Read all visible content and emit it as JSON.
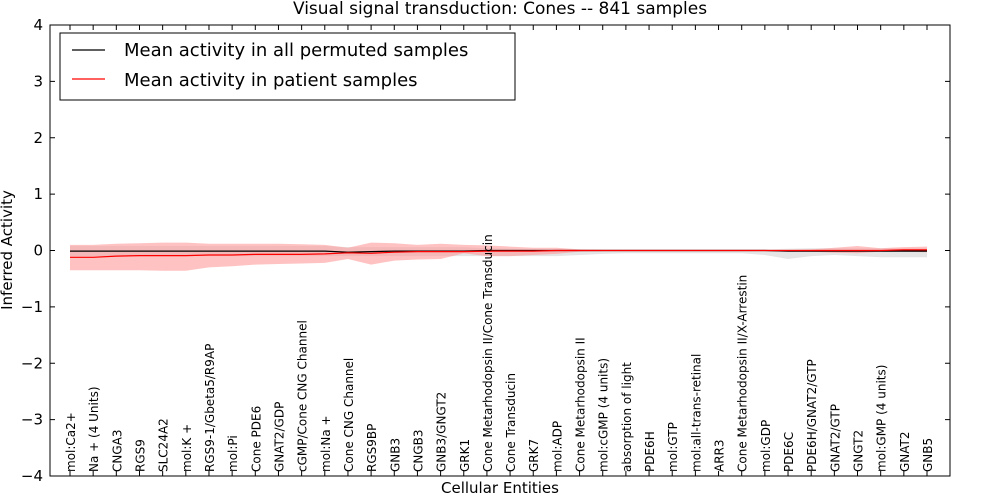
{
  "chart_data": {
    "type": "line",
    "title": "Visual signal transduction: Cones -- 841 samples",
    "xlabel": "Cellular Entities",
    "ylabel": "Inferred Activity",
    "ylim": [
      -4,
      4
    ],
    "yticks": [
      -4,
      -3,
      -2,
      -1,
      0,
      1,
      2,
      3,
      4
    ],
    "ytick_labels": [
      "−4",
      "−3",
      "−2",
      "−1",
      "0",
      "1",
      "2",
      "3",
      "4"
    ],
    "legend_position": "top-left",
    "categories": [
      "mol:Ca2+",
      "Na + (4 Units)",
      "CNGA3",
      "RGS9",
      "SLC24A2",
      "mol:K +",
      "RGS9-1/Gbeta5/R9AP",
      "mol:Pi",
      "Cone PDE6",
      "GNAT2/GDP",
      "cGMP/Cone CNG Channel",
      "mol:Na +",
      "Cone CNG Channel",
      "RGS9BP",
      "GNB3",
      "CNGB3",
      "GNB3/GNGT2",
      "GRK1",
      "Cone Metarhodopsin II/Cone Transducin",
      "Cone Transducin",
      "GRK7",
      "mol:ADP",
      "Cone Metarhodopsin II",
      "mol:cGMP (4 units)",
      "absorption of light",
      "PDE6H",
      "mol:GTP",
      "mol:all-trans-retinal",
      "ARR3",
      "Cone Metarhodopsin II/X-Arrestin",
      "mol:GDP",
      "PDE6C",
      "PDE6H/GNAT2/GTP",
      "GNAT2/GTP",
      "GNGT2",
      "mol:GMP (4 units)",
      "GNAT2",
      "GNB5"
    ],
    "series": [
      {
        "name": "Mean activity in all permuted samples",
        "color": "#000000",
        "values": [
          -0.01,
          -0.01,
          -0.01,
          -0.01,
          -0.01,
          -0.01,
          -0.01,
          -0.01,
          -0.01,
          -0.01,
          -0.01,
          -0.01,
          -0.03,
          -0.02,
          -0.01,
          -0.01,
          -0.01,
          -0.01,
          0.0,
          0.0,
          0.0,
          0.0,
          0.0,
          0.0,
          0.0,
          0.0,
          0.0,
          0.0,
          0.0,
          0.0,
          0.0,
          -0.01,
          -0.01,
          -0.01,
          -0.01,
          -0.01,
          -0.01,
          -0.01
        ],
        "band_upper": [
          0.08,
          0.08,
          0.08,
          0.08,
          0.08,
          0.08,
          0.08,
          0.08,
          0.08,
          0.08,
          0.08,
          0.08,
          0.06,
          0.06,
          0.06,
          0.06,
          0.06,
          0.06,
          0.04,
          0.03,
          0.02,
          0.02,
          0.02,
          0.02,
          0.02,
          0.02,
          0.02,
          0.02,
          0.02,
          0.02,
          0.02,
          0.03,
          0.04,
          0.04,
          0.04,
          0.04,
          0.04,
          0.04
        ],
        "band_lower": [
          -0.1,
          -0.1,
          -0.1,
          -0.1,
          -0.1,
          -0.1,
          -0.1,
          -0.1,
          -0.1,
          -0.1,
          -0.1,
          -0.1,
          -0.1,
          -0.1,
          -0.1,
          -0.1,
          -0.1,
          -0.1,
          -0.1,
          -0.1,
          -0.1,
          -0.1,
          -0.08,
          -0.06,
          -0.05,
          -0.05,
          -0.05,
          -0.05,
          -0.05,
          -0.05,
          -0.08,
          -0.15,
          -0.1,
          -0.08,
          -0.1,
          -0.12,
          -0.12,
          -0.12
        ]
      },
      {
        "name": "Mean activity in patient samples",
        "color": "#ff0000",
        "values": [
          -0.12,
          -0.12,
          -0.1,
          -0.09,
          -0.09,
          -0.09,
          -0.08,
          -0.08,
          -0.07,
          -0.07,
          -0.07,
          -0.06,
          -0.04,
          -0.05,
          -0.03,
          -0.02,
          -0.02,
          -0.02,
          -0.01,
          -0.01,
          -0.01,
          0.0,
          0.0,
          0.0,
          0.0,
          0.0,
          0.0,
          0.0,
          0.0,
          0.0,
          0.0,
          0.0,
          0.0,
          0.0,
          0.0,
          0.0,
          0.01,
          0.01
        ],
        "band_upper": [
          0.1,
          0.1,
          0.12,
          0.13,
          0.14,
          0.14,
          0.12,
          0.12,
          0.12,
          0.12,
          0.11,
          0.1,
          0.05,
          0.14,
          0.13,
          0.1,
          0.12,
          0.1,
          0.09,
          0.07,
          0.05,
          0.05,
          0.02,
          0.01,
          0.01,
          0.01,
          0.01,
          0.01,
          0.01,
          0.01,
          0.01,
          0.01,
          0.02,
          0.05,
          0.08,
          0.04,
          0.06,
          0.07
        ],
        "band_lower": [
          -0.35,
          -0.35,
          -0.35,
          -0.35,
          -0.36,
          -0.36,
          -0.3,
          -0.28,
          -0.25,
          -0.24,
          -0.23,
          -0.22,
          -0.15,
          -0.25,
          -0.18,
          -0.16,
          -0.15,
          -0.05,
          -0.1,
          -0.1,
          -0.08,
          -0.06,
          -0.02,
          -0.01,
          -0.01,
          -0.01,
          -0.01,
          -0.01,
          -0.01,
          -0.01,
          -0.01,
          -0.01,
          -0.02,
          -0.04,
          -0.05,
          -0.02,
          -0.02,
          -0.03
        ]
      }
    ],
    "band_colors": {
      "permuted": "#dcdcdc",
      "patient": "#ff9a9a"
    }
  }
}
